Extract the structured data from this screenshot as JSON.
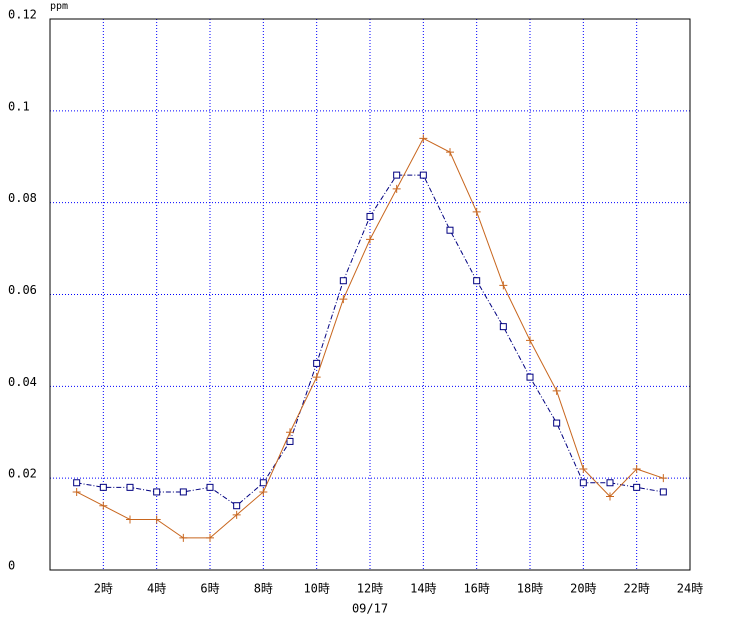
{
  "chart_data": {
    "type": "line",
    "y_unit": "ppm",
    "x_label": "09/17",
    "x": [
      1,
      2,
      3,
      4,
      5,
      6,
      7,
      8,
      9,
      10,
      11,
      12,
      13,
      14,
      15,
      16,
      17,
      18,
      19,
      20,
      21,
      22,
      23
    ],
    "series": [
      {
        "color": "#000080",
        "dash": true,
        "marker": "square",
        "values": [
          0.019,
          0.018,
          0.018,
          0.017,
          0.017,
          0.018,
          0.014,
          0.019,
          0.028,
          0.045,
          0.063,
          0.077,
          0.086,
          0.086,
          0.074,
          0.063,
          0.053,
          0.042,
          0.032,
          0.019,
          0.019,
          0.018,
          0.017
        ]
      },
      {
        "color": "#c8661e",
        "dash": false,
        "marker": "plus",
        "values": [
          0.017,
          0.014,
          0.011,
          0.011,
          0.007,
          0.007,
          0.012,
          0.017,
          0.03,
          0.042,
          0.059,
          0.072,
          0.083,
          0.094,
          0.091,
          0.078,
          0.062,
          0.05,
          0.039,
          0.022,
          0.016,
          0.022,
          0.02
        ]
      }
    ],
    "xlim": [
      0,
      24
    ],
    "xticks": [
      {
        "value": 2,
        "label": "2時"
      },
      {
        "value": 4,
        "label": "4時"
      },
      {
        "value": 6,
        "label": "6時"
      },
      {
        "value": 8,
        "label": "8時"
      },
      {
        "value": 10,
        "label": "10時"
      },
      {
        "value": 12,
        "label": "12時"
      },
      {
        "value": 14,
        "label": "14時"
      },
      {
        "value": 16,
        "label": "16時"
      },
      {
        "value": 18,
        "label": "18時"
      },
      {
        "value": 20,
        "label": "20時"
      },
      {
        "value": 22,
        "label": "22時"
      },
      {
        "value": 24,
        "label": "24時"
      }
    ],
    "ylim": [
      0,
      0.12
    ],
    "yticks": [
      0,
      0.02,
      0.04,
      0.06,
      0.08,
      0.1,
      0.12
    ],
    "grid": true
  }
}
